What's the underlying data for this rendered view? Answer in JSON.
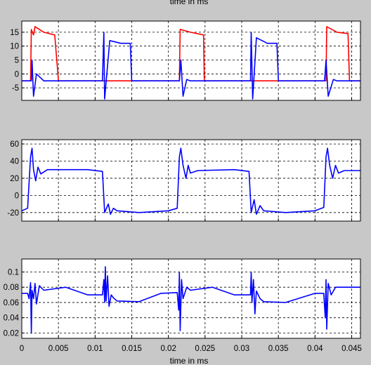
{
  "chart_data": [
    {
      "type": "line",
      "xlabel": "",
      "ylabel": "",
      "xlim": [
        0,
        0.0462
      ],
      "ylim": [
        -9.5,
        19
      ],
      "yticks": [
        -5,
        0,
        5,
        10,
        15
      ],
      "x_tick_labels_visible": false,
      "grid": true,
      "series": [
        {
          "color": "#ff0000",
          "points": [
            [
              0,
              -2.5
            ],
            [
              0.0012,
              -2.5
            ],
            [
              0.0013,
              16
            ],
            [
              0.0016,
              14
            ],
            [
              0.0018,
              17
            ],
            [
              0.003,
              15
            ],
            [
              0.0045,
              14
            ],
            [
              0.005,
              -2.5
            ],
            [
              0.0115,
              -2.5
            ],
            [
              0.0125,
              -2.5
            ],
            [
              0.0135,
              -2.5
            ],
            [
              0.02,
              -2.5
            ],
            [
              0.0215,
              -2.5
            ],
            [
              0.0216,
              16
            ],
            [
              0.023,
              15
            ],
            [
              0.0248,
              14
            ],
            [
              0.0249,
              -2.5
            ],
            [
              0.031,
              -2.5
            ],
            [
              0.0315,
              -2.5
            ],
            [
              0.0345,
              -2.5
            ],
            [
              0.04,
              -2.5
            ],
            [
              0.0415,
              -2.5
            ],
            [
              0.0416,
              17
            ],
            [
              0.043,
              15
            ],
            [
              0.0445,
              14.5
            ],
            [
              0.0447,
              -2.5
            ],
            [
              0.0462,
              -2.5
            ]
          ]
        },
        {
          "color": "#0000ff",
          "points": [
            [
              0,
              -2.5
            ],
            [
              0.0013,
              -2.5
            ],
            [
              0.0014,
              5
            ],
            [
              0.0016,
              -8
            ],
            [
              0.002,
              0
            ],
            [
              0.003,
              -2.5
            ],
            [
              0.011,
              -2.5
            ],
            [
              0.0112,
              15
            ],
            [
              0.0113,
              -9
            ],
            [
              0.012,
              12
            ],
            [
              0.0135,
              11
            ],
            [
              0.0148,
              11
            ],
            [
              0.015,
              -2.5
            ],
            [
              0.0215,
              -2.5
            ],
            [
              0.0217,
              5
            ],
            [
              0.022,
              -8
            ],
            [
              0.0225,
              -2
            ],
            [
              0.023,
              -2.5
            ],
            [
              0.0312,
              -2.5
            ],
            [
              0.0313,
              15
            ],
            [
              0.0315,
              -9
            ],
            [
              0.032,
              13
            ],
            [
              0.0335,
              11
            ],
            [
              0.0348,
              11
            ],
            [
              0.035,
              -2.5
            ],
            [
              0.0413,
              -2.5
            ],
            [
              0.0415,
              5
            ],
            [
              0.0418,
              -8
            ],
            [
              0.0425,
              -2
            ],
            [
              0.043,
              -2.5
            ],
            [
              0.0462,
              -2.5
            ]
          ]
        }
      ]
    },
    {
      "type": "line",
      "xlabel": "",
      "ylabel": "",
      "xlim": [
        0,
        0.0462
      ],
      "ylim": [
        -30,
        65
      ],
      "yticks": [
        -20,
        0,
        20,
        40,
        60
      ],
      "x_tick_labels_visible": false,
      "grid": true,
      "series": [
        {
          "color": "#0000ff",
          "points": [
            [
              0,
              -18
            ],
            [
              0.0008,
              -15
            ],
            [
              0.0012,
              45
            ],
            [
              0.0014,
              55
            ],
            [
              0.0016,
              30
            ],
            [
              0.0019,
              17
            ],
            [
              0.0022,
              33
            ],
            [
              0.0026,
              25
            ],
            [
              0.0035,
              30
            ],
            [
              0.006,
              30
            ],
            [
              0.009,
              30
            ],
            [
              0.011,
              28
            ],
            [
              0.0113,
              -20
            ],
            [
              0.0118,
              -10
            ],
            [
              0.0121,
              -22
            ],
            [
              0.0125,
              -15
            ],
            [
              0.013,
              -18
            ],
            [
              0.016,
              -20
            ],
            [
              0.02,
              -18
            ],
            [
              0.0212,
              -15
            ],
            [
              0.0215,
              45
            ],
            [
              0.0217,
              55
            ],
            [
              0.022,
              35
            ],
            [
              0.0224,
              20
            ],
            [
              0.0227,
              35
            ],
            [
              0.023,
              26
            ],
            [
              0.024,
              29
            ],
            [
              0.029,
              30
            ],
            [
              0.031,
              28
            ],
            [
              0.0313,
              -20
            ],
            [
              0.0317,
              -5
            ],
            [
              0.032,
              -22
            ],
            [
              0.0325,
              -12
            ],
            [
              0.033,
              -18
            ],
            [
              0.036,
              -20
            ],
            [
              0.04,
              -18
            ],
            [
              0.0412,
              -14
            ],
            [
              0.0415,
              45
            ],
            [
              0.0417,
              55
            ],
            [
              0.042,
              35
            ],
            [
              0.0424,
              20
            ],
            [
              0.0428,
              35
            ],
            [
              0.0432,
              26
            ],
            [
              0.044,
              29
            ],
            [
              0.0462,
              29
            ]
          ]
        }
      ]
    },
    {
      "type": "line",
      "xlabel": "time in ms",
      "ylabel": "",
      "xlim": [
        0,
        0.0462
      ],
      "ylim": [
        0.013,
        0.117
      ],
      "yticks": [
        0.02,
        0.04,
        0.06,
        0.08,
        0.1
      ],
      "xticks": [
        0,
        0.005,
        0.01,
        0.015,
        0.02,
        0.025,
        0.03,
        0.035,
        0.04,
        0.045
      ],
      "grid": true,
      "series": [
        {
          "color": "#0000ff",
          "points": [
            [
              0,
              0.072
            ],
            [
              0.0008,
              0.072
            ],
            [
              0.001,
              0.065
            ],
            [
              0.0012,
              0.086
            ],
            [
              0.0013,
              0.02
            ],
            [
              0.0014,
              0.076
            ],
            [
              0.0016,
              0.065
            ],
            [
              0.0018,
              0.085
            ],
            [
              0.002,
              0.058
            ],
            [
              0.0024,
              0.082
            ],
            [
              0.003,
              0.076
            ],
            [
              0.006,
              0.08
            ],
            [
              0.009,
              0.07
            ],
            [
              0.011,
              0.07
            ],
            [
              0.0112,
              0.09
            ],
            [
              0.0113,
              0.06
            ],
            [
              0.0114,
              0.107
            ],
            [
              0.0115,
              0.062
            ],
            [
              0.0117,
              0.095
            ],
            [
              0.0119,
              0.055
            ],
            [
              0.0122,
              0.07
            ],
            [
              0.0125,
              0.066
            ],
            [
              0.013,
              0.062
            ],
            [
              0.016,
              0.061
            ],
            [
              0.019,
              0.072
            ],
            [
              0.0212,
              0.073
            ],
            [
              0.0214,
              0.05
            ],
            [
              0.0215,
              0.1
            ],
            [
              0.0216,
              0.023
            ],
            [
              0.0218,
              0.09
            ],
            [
              0.022,
              0.065
            ],
            [
              0.0225,
              0.08
            ],
            [
              0.023,
              0.076
            ],
            [
              0.026,
              0.08
            ],
            [
              0.029,
              0.07
            ],
            [
              0.0312,
              0.07
            ],
            [
              0.0313,
              0.1
            ],
            [
              0.0314,
              0.06
            ],
            [
              0.0316,
              0.09
            ],
            [
              0.0318,
              0.045
            ],
            [
              0.032,
              0.075
            ],
            [
              0.0325,
              0.065
            ],
            [
              0.033,
              0.061
            ],
            [
              0.036,
              0.06
            ],
            [
              0.04,
              0.072
            ],
            [
              0.0412,
              0.072
            ],
            [
              0.0414,
              0.04
            ],
            [
              0.0415,
              0.09
            ],
            [
              0.0416,
              0.025
            ],
            [
              0.0418,
              0.085
            ],
            [
              0.0422,
              0.07
            ],
            [
              0.0428,
              0.08
            ],
            [
              0.0462,
              0.08
            ]
          ]
        }
      ]
    }
  ],
  "top_label_fragment": "time in ms"
}
